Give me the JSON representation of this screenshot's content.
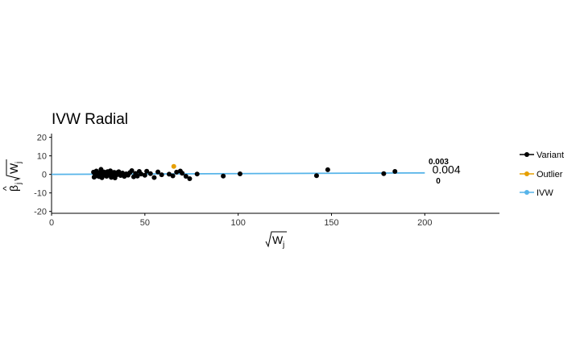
{
  "chart_data": {
    "type": "scatter",
    "title": "IVW Radial",
    "xlabel": "√W_j",
    "ylabel": "β̂_j √W_j",
    "xlim": [
      0,
      240
    ],
    "ylim": [
      -21,
      22
    ],
    "x_ticks": [
      0,
      50,
      100,
      150,
      200
    ],
    "y_ticks": [
      -20,
      -10,
      0,
      10,
      20
    ],
    "grid": false,
    "legend_position": "right",
    "legend": [
      {
        "key": "variant",
        "label": "Variant",
        "color": "#000000"
      },
      {
        "key": "outlier",
        "label": "Outlier",
        "color": "#E69F00"
      },
      {
        "key": "ivw",
        "label": "IVW",
        "color": "#56B4E9"
      }
    ],
    "series": [
      {
        "name": "Variant",
        "color": "#000000",
        "points": [
          [
            22.5,
            1.2
          ],
          [
            22.8,
            -1.5
          ],
          [
            23.2,
            0.3
          ],
          [
            24.0,
            1.8
          ],
          [
            24.5,
            -0.8
          ],
          [
            25.0,
            0.5
          ],
          [
            25.5,
            -1.2
          ],
          [
            26.0,
            1.0
          ],
          [
            26.5,
            2.7
          ],
          [
            27.0,
            -1.8
          ],
          [
            27.5,
            0.2
          ],
          [
            28.0,
            1.3
          ],
          [
            28.5,
            -0.5
          ],
          [
            29.0,
            0.8
          ],
          [
            29.5,
            -1.0
          ],
          [
            30.0,
            1.5
          ],
          [
            30.5,
            -0.3
          ],
          [
            31.0,
            0.6
          ],
          [
            31.5,
            1.9
          ],
          [
            32.0,
            -1.6
          ],
          [
            32.5,
            0.4
          ],
          [
            33.0,
            -0.7
          ],
          [
            33.5,
            1.1
          ],
          [
            34.0,
            -1.9
          ],
          [
            34.5,
            0.9
          ],
          [
            35.0,
            -0.2
          ],
          [
            36.0,
            1.4
          ],
          [
            37.0,
            -0.6
          ],
          [
            38.0,
            0.7
          ],
          [
            39.0,
            -1.1
          ],
          [
            40.0,
            0.3
          ],
          [
            41.0,
            -0.4
          ],
          [
            42.0,
            1.0
          ],
          [
            43.0,
            2.0
          ],
          [
            44.0,
            -1.3
          ],
          [
            45.0,
            0.5
          ],
          [
            46.0,
            -0.9
          ],
          [
            47.0,
            1.6
          ],
          [
            48.0,
            0.2
          ],
          [
            50.0,
            -0.5
          ],
          [
            51.0,
            1.7
          ],
          [
            53.0,
            0.4
          ],
          [
            55.0,
            -1.7
          ],
          [
            57.0,
            1.3
          ],
          [
            59.0,
            -0.2
          ],
          [
            63.0,
            0.1
          ],
          [
            65.0,
            -0.8
          ],
          [
            67.0,
            1.2
          ],
          [
            69.0,
            1.8
          ],
          [
            70.0,
            0.6
          ],
          [
            72.0,
            -1.0
          ],
          [
            74.0,
            -2.3
          ],
          [
            78.0,
            0.2
          ],
          [
            92.0,
            -0.9
          ],
          [
            101.0,
            0.3
          ],
          [
            142.0,
            -0.7
          ],
          [
            148.0,
            2.5
          ],
          [
            178.0,
            0.4
          ],
          [
            184.0,
            1.6
          ]
        ]
      },
      {
        "name": "Outlier",
        "color": "#E69F00",
        "points": [
          [
            65.5,
            4.3
          ]
        ]
      },
      {
        "name": "IVW",
        "color": "#56B4E9",
        "slope": 0.004,
        "x_range": [
          0,
          200
        ]
      }
    ],
    "annotations": [
      {
        "text": "0.003",
        "x": 202,
        "y": 5.5,
        "style": "small"
      },
      {
        "text": "0.004",
        "x": 204,
        "y": 0.4,
        "style": "big"
      },
      {
        "text": "0",
        "x": 206,
        "y": -4.9,
        "style": "small"
      }
    ]
  }
}
